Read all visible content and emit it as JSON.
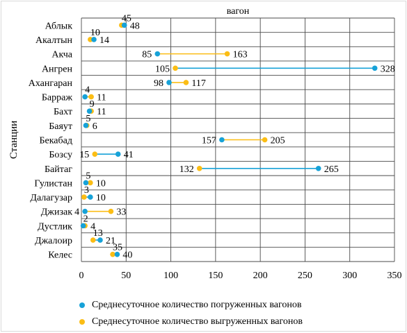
{
  "chart_data": {
    "type": "dumbbell",
    "title": "вагон",
    "xlabel": "",
    "ylabel": "Станции",
    "xlim": [
      0,
      350
    ],
    "xticks": [
      0,
      50,
      100,
      150,
      200,
      250,
      300,
      350
    ],
    "grid": true,
    "legend_position": "bottom",
    "categories": [
      "Аблык",
      "Акалтын",
      "Акча",
      "Ангрен",
      "Ахангаран",
      "Барраж",
      "Бахт",
      "Баяут",
      "Бекабад",
      "Бозсу",
      "Байтаг",
      "Гулистан",
      "Далагузар",
      "Джизак",
      "Дустлик",
      "Джалоир",
      "Келес"
    ],
    "series": [
      {
        "name": "Среднесуточное количество погруженных вагонов",
        "color": "#17a2d8",
        "values": [
          48,
          14,
          85,
          328,
          98,
          4,
          9,
          5,
          157,
          41,
          265,
          5,
          10,
          4,
          2,
          21,
          40
        ]
      },
      {
        "name": "Среднесуточное количество выгруженных вагонов",
        "color": "#fbbd15",
        "values": [
          45,
          10,
          163,
          105,
          117,
          11,
          11,
          6,
          205,
          15,
          132,
          10,
          3,
          33,
          4,
          13,
          35
        ]
      }
    ]
  }
}
